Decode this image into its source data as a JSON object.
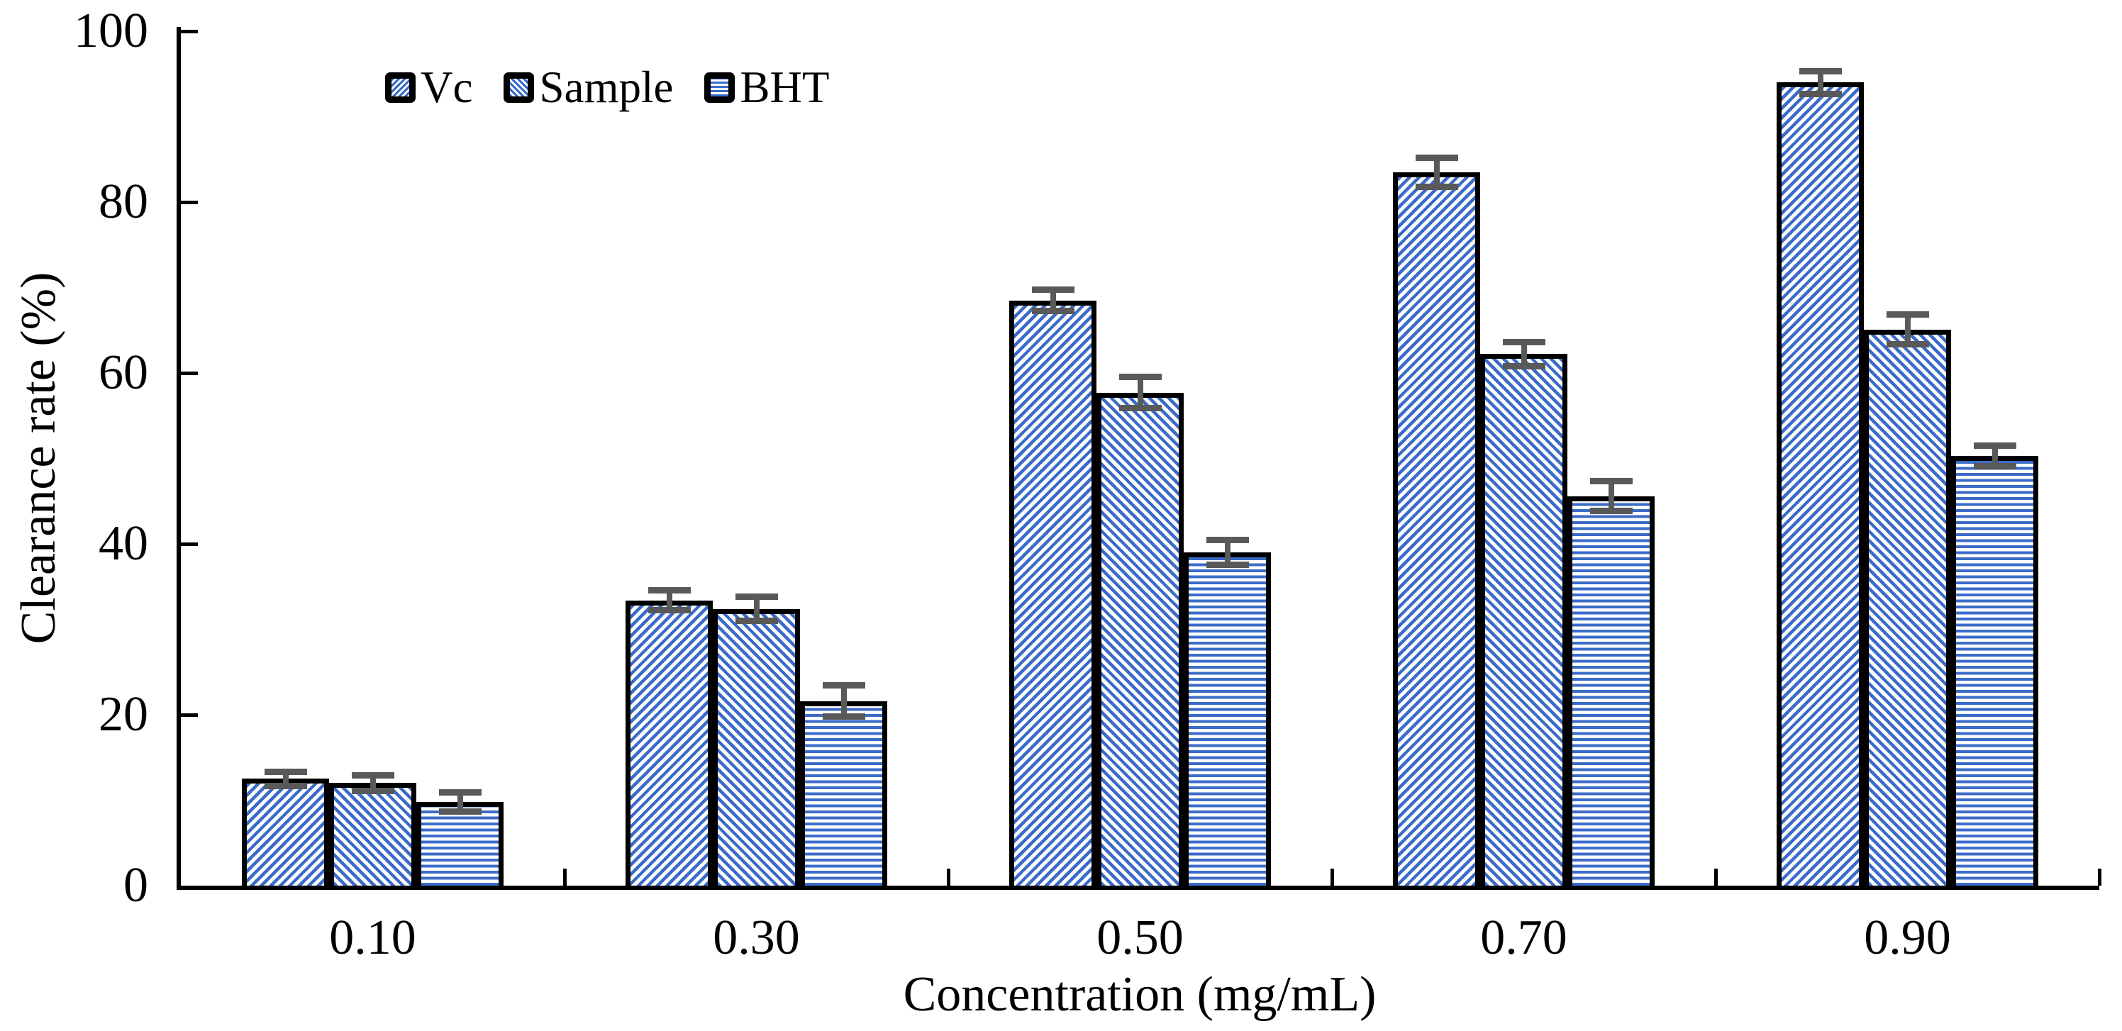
{
  "colors": {
    "hatch_blue": "#3A6BC8",
    "bar_border": "#000000",
    "error_bar": "#595959",
    "axis": "#000000",
    "text": "#000000",
    "background": "#FFFFFF"
  },
  "chart_data": {
    "type": "bar",
    "title": "",
    "xlabel": "Concentration (mg/mL)",
    "ylabel": "Clearance rate (%)",
    "categories": [
      "0.10",
      "0.30",
      "0.50",
      "0.70",
      "0.90"
    ],
    "series": [
      {
        "name": "Vc",
        "pattern": "diagonal-forward",
        "values": [
          12.5,
          33.4,
          68.5,
          83.5,
          94.0
        ],
        "errors": [
          1.2,
          1.5,
          1.6,
          2.1,
          1.7
        ]
      },
      {
        "name": "Sample",
        "pattern": "diagonal-backward",
        "values": [
          12.0,
          32.4,
          57.7,
          62.2,
          65.1
        ],
        "errors": [
          1.3,
          1.8,
          2.2,
          1.8,
          2.1
        ]
      },
      {
        "name": "BHT",
        "pattern": "horizontal",
        "values": [
          9.8,
          21.6,
          39.0,
          45.6,
          50.3
        ],
        "errors": [
          1.5,
          2.2,
          1.8,
          2.1,
          1.6
        ]
      }
    ],
    "y_ticks": [
      0,
      20,
      40,
      60,
      80,
      100
    ],
    "ylim": [
      0,
      100
    ],
    "grid": false,
    "legend_position": "top-left-inside",
    "error_bars": true
  }
}
